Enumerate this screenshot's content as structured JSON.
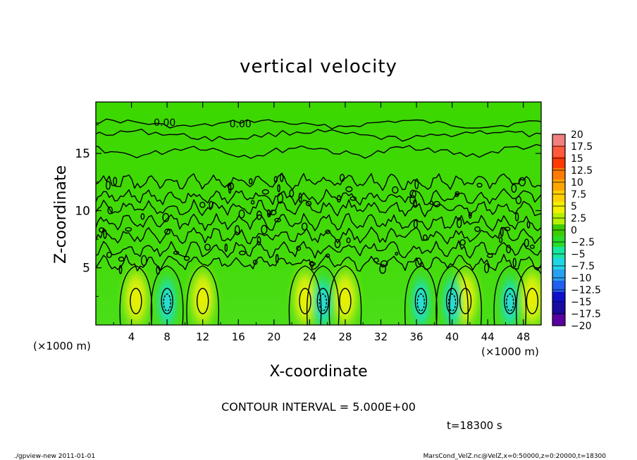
{
  "chart_data": {
    "type": "heatmap",
    "title": "vertical velocity",
    "xlabel": "X-coordinate",
    "ylabel": "Z-coordinate",
    "x_unit_left": "(×1000 m)",
    "x_unit_right": "(×1000 m)",
    "xlim": [
      0,
      50
    ],
    "ylim": [
      0,
      19.5
    ],
    "x_ticks": [
      4,
      8,
      12,
      16,
      20,
      24,
      28,
      32,
      36,
      40,
      44,
      48
    ],
    "y_ticks": [
      5,
      10,
      15
    ],
    "contour_note": "CONTOUR INTERVAL = 5.000E+00",
    "contour_labels": [
      "0.00",
      "0.00",
      "0.00"
    ],
    "time_label": "t=18300 s",
    "colorbar": {
      "levels": [
        "20",
        "17.5",
        "15",
        "12.5",
        "10",
        "7.5",
        "5",
        "2.5",
        "0",
        "−2.5",
        "−5",
        "−7.5",
        "−10",
        "−12.5",
        "−15",
        "−17.5",
        "−20"
      ],
      "colors": [
        "#f08080",
        "#ff5a3c",
        "#ff3a00",
        "#ff7a00",
        "#ffa500",
        "#ffd000",
        "#f0f000",
        "#b4f000",
        "#3ccc00",
        "#28dc28",
        "#18e6a0",
        "#20d6e6",
        "#2aa0f0",
        "#2060f0",
        "#1010c8",
        "#1a0aa0",
        "#5a00a0"
      ]
    },
    "updrafts_x": [
      4.5,
      12,
      23.5,
      28,
      41.5,
      49
    ],
    "downdrafts_x": [
      8,
      25.5,
      36.5,
      40,
      46.5
    ]
  },
  "footer": {
    "left": "./gpview-new   2011-01-01",
    "right": "MarsCond_VelZ.nc@VelZ,x=0:50000,z=0:20000,t=18300"
  }
}
